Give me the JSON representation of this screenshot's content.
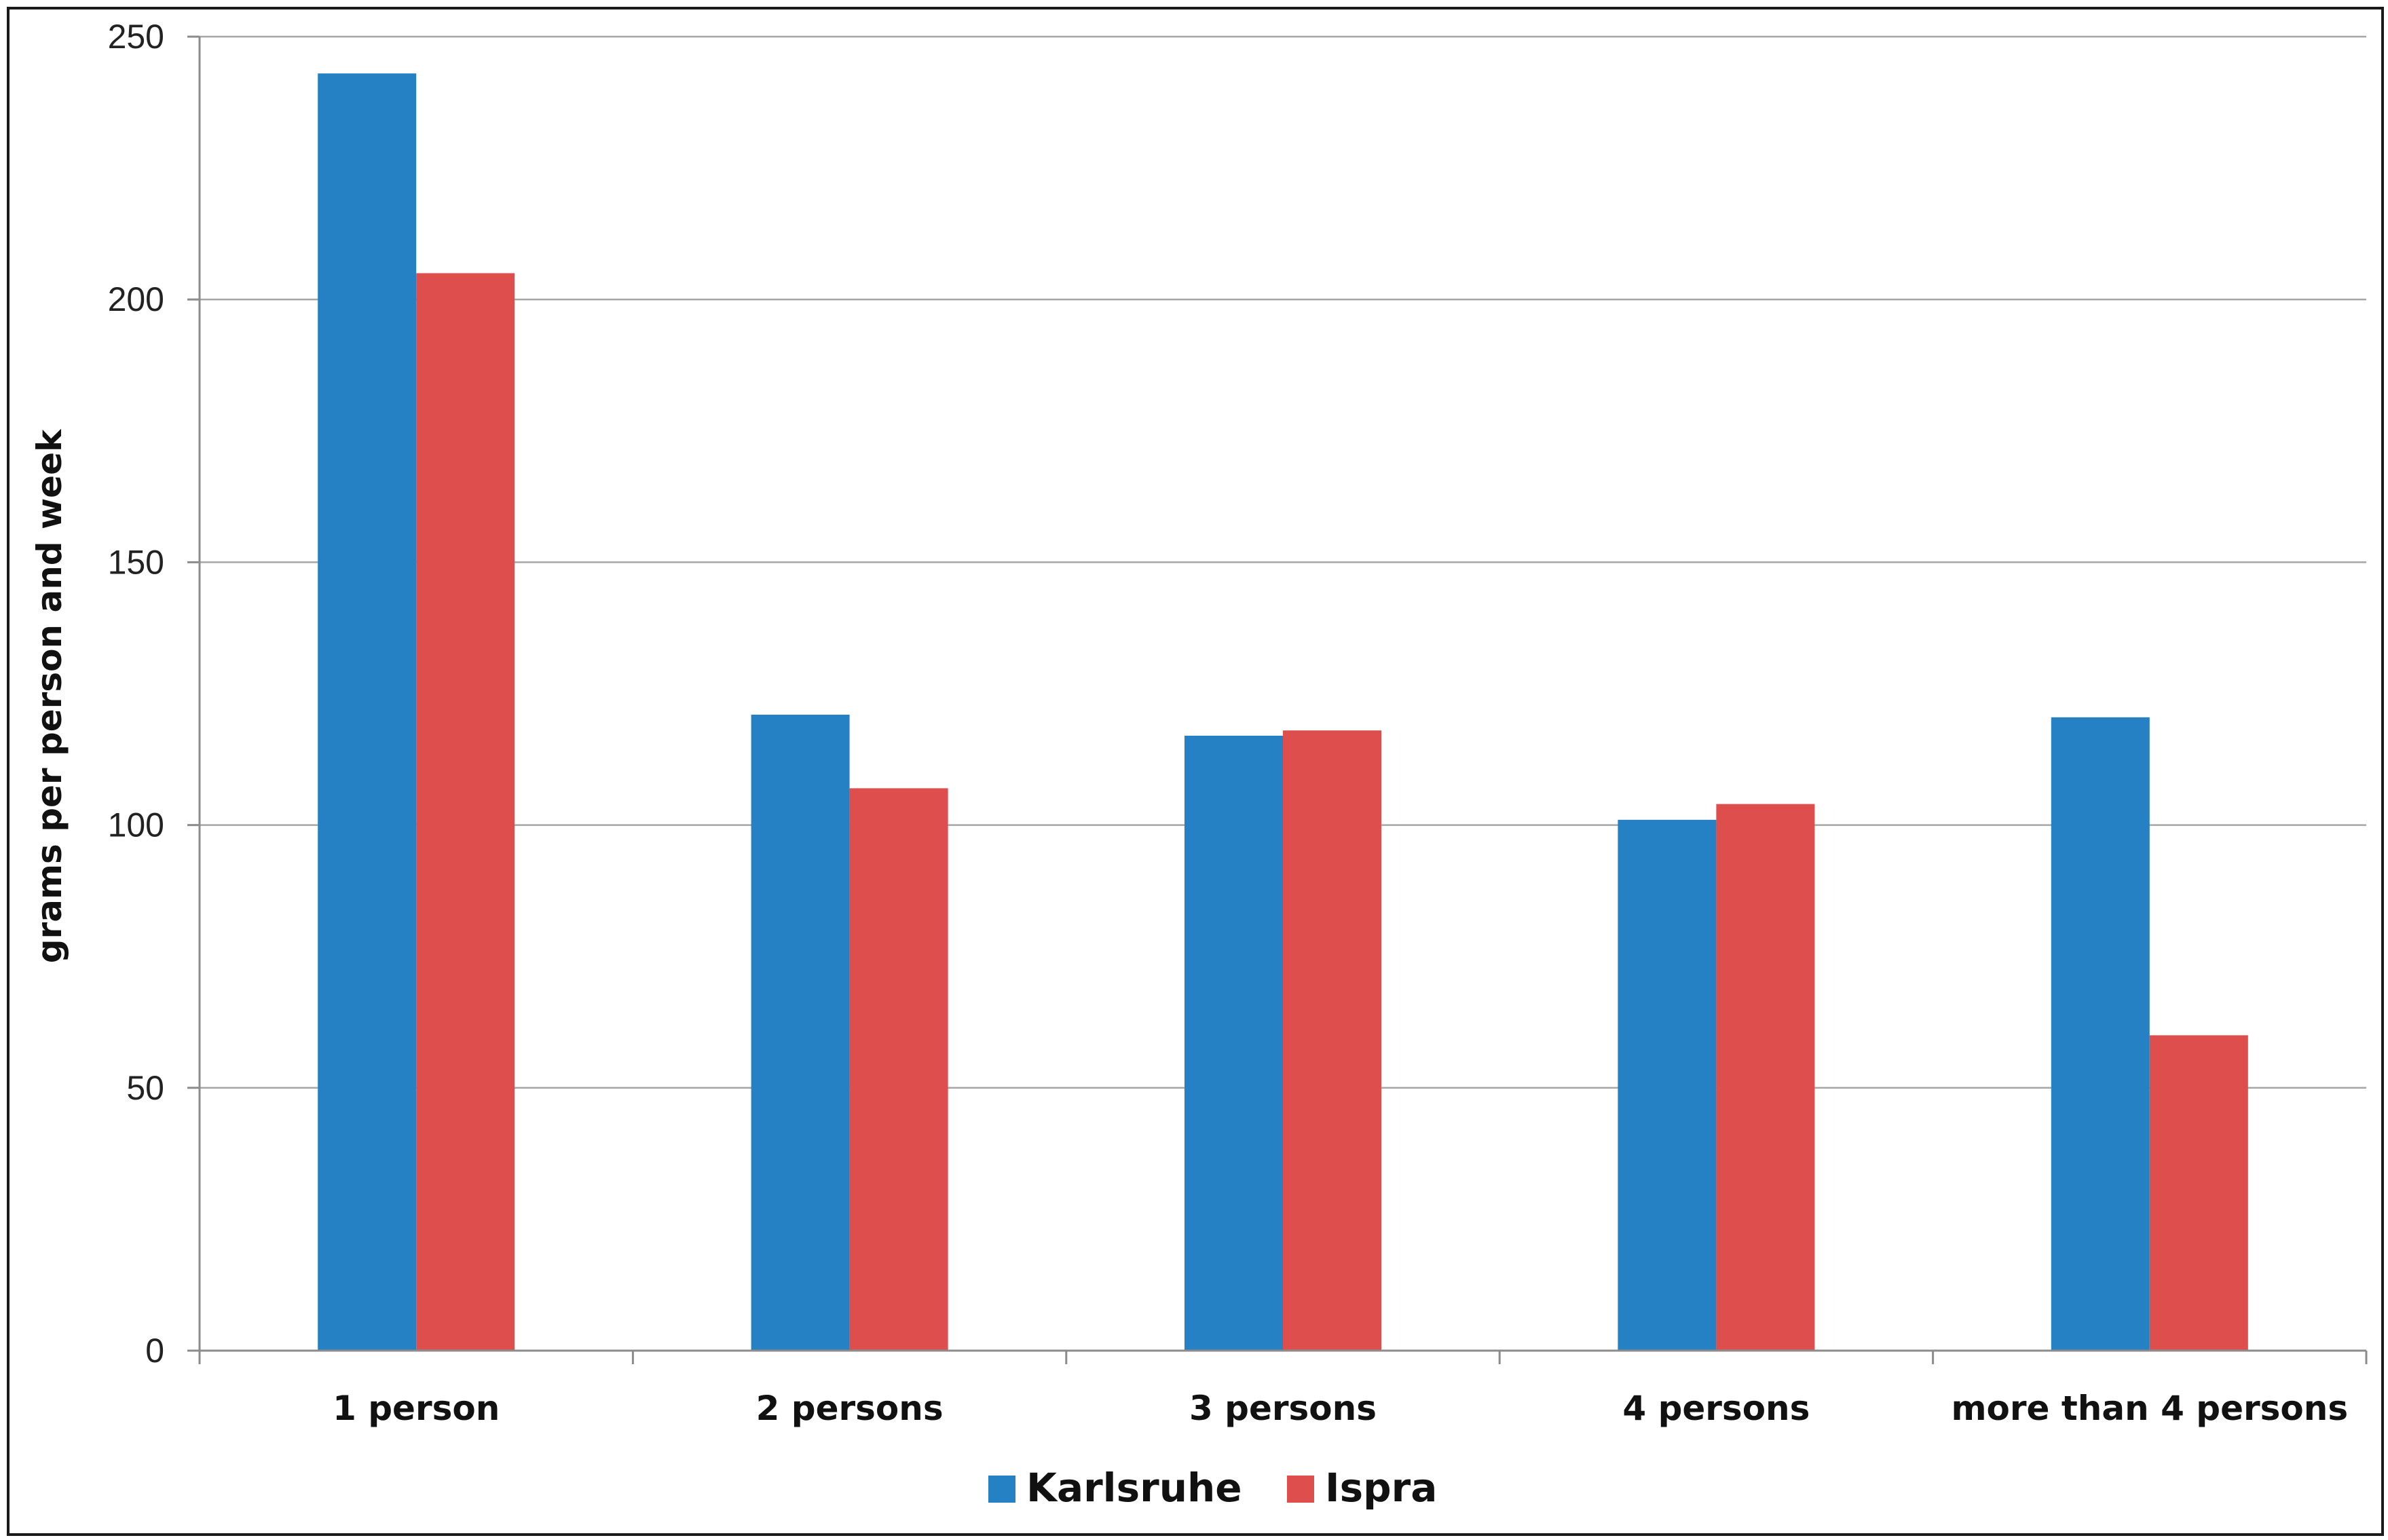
{
  "chart_data": {
    "type": "bar",
    "categories": [
      "1 person",
      "2 persons",
      "3 persons",
      "4 persons",
      "more than 4 persons"
    ],
    "series": [
      {
        "name": "Karlsruhe",
        "values": [
          243,
          121,
          117,
          101,
          120.5
        ],
        "color": "#2581c4"
      },
      {
        "name": "Ispra",
        "values": [
          205,
          107,
          118,
          104,
          60
        ],
        "color": "#de4e4c"
      }
    ],
    "title": "",
    "xlabel": "",
    "ylabel": "grams per person and week",
    "ylim": [
      0,
      250
    ],
    "yticks": [
      "0",
      "50",
      "100",
      "150",
      "200",
      "250"
    ],
    "grid": true,
    "legend_position": "bottom"
  }
}
